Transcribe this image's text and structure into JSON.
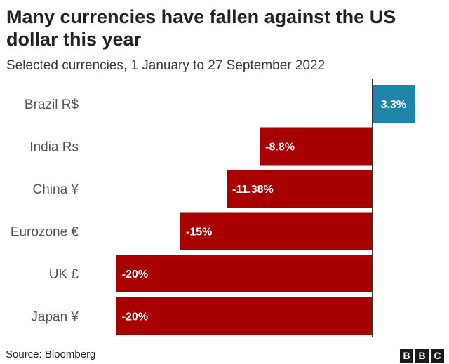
{
  "title": "Many currencies have fallen against the US dollar this year",
  "subtitle": "Selected currencies, 1 January to 27 September 2022",
  "source": "Source: Bloomberg",
  "logo": [
    "B",
    "B",
    "C"
  ],
  "colors": {
    "negative": "#a80000",
    "positive": "#1e84a8",
    "axis": "#333333"
  },
  "chart_data": {
    "type": "bar",
    "orientation": "horizontal",
    "categories": [
      "Brazil R$",
      "India Rs",
      "China ¥",
      "Eurozone €",
      "UK £",
      "Japan ¥"
    ],
    "values": [
      3.3,
      -8.8,
      -11.38,
      -15,
      -20,
      -20
    ],
    "data_labels": [
      "3.3%",
      "-8.8%",
      "-11.38%",
      "-15%",
      "-20%",
      "-20%"
    ],
    "title": "Many currencies have fallen against the US dollar this year",
    "xlabel": "",
    "ylabel": "",
    "xlim": [
      -21.3,
      3.3
    ],
    "grid": false
  }
}
